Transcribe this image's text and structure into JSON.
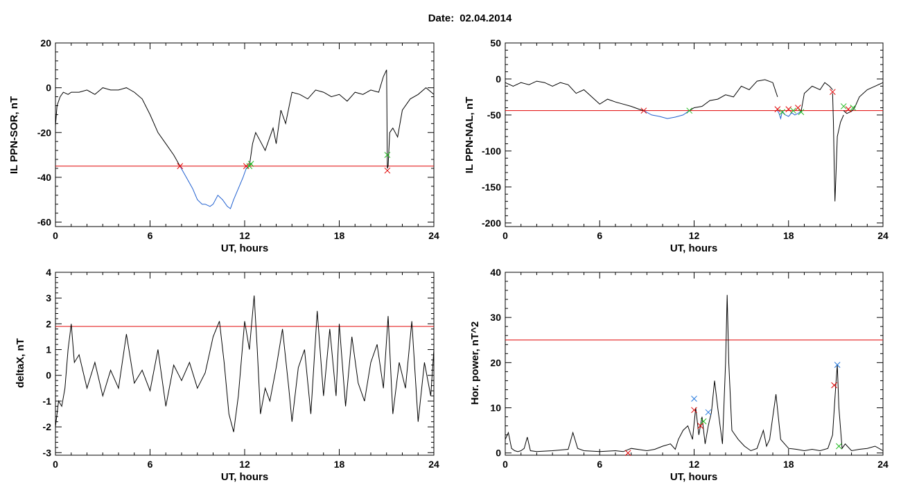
{
  "header": {
    "date_label": "Date:",
    "date_value": "02.04.2014"
  },
  "chart_data": [
    {
      "id": "p1",
      "type": "line",
      "ylabel": "IL PPN-SOR, nT",
      "xlabel": "UT, hours",
      "xlim": [
        0,
        24
      ],
      "ylim": [
        -62,
        20
      ],
      "xticks": [
        0,
        6,
        12,
        18,
        24
      ],
      "yticks": [
        -60,
        -40,
        -20,
        0,
        20
      ],
      "threshold": -35,
      "colors": {
        "line": "#000000",
        "highlight": "#1f5fd0",
        "threshold": "#e00000",
        "marker_red": "#e00000",
        "marker_green": "#22bb22"
      },
      "series": [
        {
          "x": [
            0,
            0.1,
            0.3,
            0.5,
            0.8,
            1,
            1.5,
            2,
            2.5,
            3,
            3.5,
            4,
            4.5,
            5,
            5.5,
            6,
            6.5,
            7,
            7.5,
            7.9
          ],
          "y": [
            -17,
            -8,
            -4,
            -2,
            -3,
            -2,
            -2,
            -1,
            -3,
            0,
            -1,
            -1,
            0,
            -2,
            -5,
            -12,
            -20,
            -25,
            -30,
            -35
          ]
        },
        {
          "x": [
            7.9,
            8.3,
            8.7,
            9,
            9.3,
            9.5,
            9.8,
            10,
            10.3,
            10.6,
            10.9,
            11.1,
            11.3,
            11.6,
            11.9,
            12.1,
            12.3
          ],
          "y": [
            -35,
            -40,
            -45,
            -50,
            -52,
            -52,
            -53,
            -52,
            -48,
            -50,
            -53,
            -54,
            -50,
            -45,
            -40,
            -36,
            -35
          ]
        },
        {
          "x": [
            12.3,
            12.5,
            12.7,
            13,
            13.3,
            13.5,
            13.8,
            14,
            14.3,
            14.6,
            15,
            15.5,
            16,
            16.5,
            17,
            17.5,
            18,
            18.5,
            19,
            19.5,
            20,
            20.5,
            20.8,
            21,
            21.05,
            21.1,
            21.2,
            21.4,
            21.7,
            22,
            22.5,
            23,
            23.5,
            24
          ],
          "y": [
            -35,
            -25,
            -20,
            -24,
            -28,
            -24,
            -18,
            -25,
            -10,
            -16,
            -2,
            -3,
            -5,
            -1,
            -2,
            -4,
            -3,
            -6,
            -2,
            -3,
            -1,
            -2,
            5,
            8,
            -36,
            -35,
            -20,
            -18,
            -22,
            -10,
            -5,
            -3,
            0,
            -3
          ]
        }
      ],
      "markers": [
        {
          "x": 7.9,
          "y": -35,
          "color": "red"
        },
        {
          "x": 12.1,
          "y": -35,
          "color": "red"
        },
        {
          "x": 12.3,
          "y": -35,
          "color": "green"
        },
        {
          "x": 12.4,
          "y": -34,
          "color": "green"
        },
        {
          "x": 21.05,
          "y": -37,
          "color": "red"
        },
        {
          "x": 21.05,
          "y": -30,
          "color": "green"
        }
      ]
    },
    {
      "id": "p2",
      "type": "line",
      "ylabel": "IL PPN-NAL, nT",
      "xlabel": "UT, hours",
      "xlim": [
        0,
        24
      ],
      "ylim": [
        -205,
        50
      ],
      "xticks": [
        0,
        6,
        12,
        18,
        24
      ],
      "yticks": [
        -200,
        -150,
        -100,
        -50,
        0,
        50
      ],
      "threshold": -44,
      "colors": {
        "line": "#000000",
        "highlight": "#1f5fd0",
        "threshold": "#e00000",
        "marker_red": "#e00000",
        "marker_green": "#22bb22"
      },
      "series": [
        {
          "x": [
            0,
            0.5,
            1,
            1.5,
            2,
            2.5,
            3,
            3.5,
            4,
            4.5,
            5,
            5.5,
            6,
            6.5,
            7,
            7.5,
            8,
            8.5,
            8.8
          ],
          "y": [
            -5,
            -10,
            -5,
            -8,
            -3,
            -5,
            -10,
            -5,
            -8,
            -20,
            -15,
            -25,
            -35,
            -28,
            -32,
            -35,
            -38,
            -42,
            -44
          ]
        },
        {
          "x": [
            8.8,
            9.3,
            9.8,
            10.3,
            10.8,
            11.3,
            11.7
          ],
          "y": [
            -44,
            -50,
            -52,
            -55,
            -53,
            -50,
            -44
          ]
        },
        {
          "x": [
            11.7,
            12,
            12.5,
            13,
            13.5,
            14,
            14.5,
            15,
            15.5,
            16,
            16.5,
            17,
            17.3
          ],
          "y": [
            -44,
            -40,
            -38,
            -30,
            -28,
            -22,
            -25,
            -10,
            -15,
            -3,
            -1,
            -5,
            -25
          ]
        },
        {
          "x": [
            17.3,
            17.4,
            17.5,
            17.6,
            17.8,
            18,
            18.2,
            18.4,
            18.6,
            18.8
          ],
          "y": [
            -44,
            -48,
            -55,
            -45,
            -50,
            -52,
            -47,
            -50,
            -48,
            -45
          ]
        },
        {
          "x": [
            18.8,
            19,
            19.5,
            20,
            20.3,
            20.6,
            20.8
          ],
          "y": [
            -45,
            -20,
            -10,
            -15,
            -5,
            -10,
            -15
          ]
        },
        {
          "x": [
            20.8,
            20.85,
            20.9,
            20.95,
            21,
            21.05,
            21.1,
            21.2,
            21.3,
            21.4,
            21.5
          ],
          "y": [
            -20,
            -60,
            -120,
            -170,
            -140,
            -110,
            -80,
            -70,
            -60,
            -55,
            -50
          ]
        },
        {
          "x": [
            21.5,
            21.7,
            22,
            22.2,
            22.5,
            23,
            23.5,
            24
          ],
          "y": [
            -44,
            -48,
            -45,
            -40,
            -25,
            -15,
            -10,
            -5
          ]
        }
      ],
      "markers": [
        {
          "x": 8.8,
          "y": -44,
          "color": "red"
        },
        {
          "x": 11.7,
          "y": -44,
          "color": "green"
        },
        {
          "x": 17.3,
          "y": -42,
          "color": "red"
        },
        {
          "x": 17.6,
          "y": -46,
          "color": "green"
        },
        {
          "x": 18,
          "y": -42,
          "color": "red"
        },
        {
          "x": 18.3,
          "y": -44,
          "color": "green"
        },
        {
          "x": 18.6,
          "y": -40,
          "color": "red"
        },
        {
          "x": 18.8,
          "y": -46,
          "color": "green"
        },
        {
          "x": 20.8,
          "y": -18,
          "color": "red"
        },
        {
          "x": 21.5,
          "y": -38,
          "color": "green"
        },
        {
          "x": 21.8,
          "y": -42,
          "color": "red"
        },
        {
          "x": 22.1,
          "y": -40,
          "color": "green"
        }
      ]
    },
    {
      "id": "p3",
      "type": "line",
      "ylabel": "deltaX, nT",
      "xlabel": "UT, hours",
      "xlim": [
        0,
        24
      ],
      "ylim": [
        -3.1,
        4
      ],
      "xticks": [
        0,
        6,
        12,
        18,
        24
      ],
      "yticks": [
        -3,
        -2,
        -1,
        0,
        1,
        2,
        3,
        4
      ],
      "threshold": 1.9,
      "colors": {
        "line": "#000000",
        "threshold": "#e00000"
      },
      "series": [
        {
          "x": [
            0,
            0.2,
            0.4,
            0.6,
            0.8,
            1,
            1.2,
            1.5,
            2,
            2.5,
            3,
            3.5,
            4,
            4.5,
            5,
            5.5,
            6,
            6.5,
            7,
            7.5,
            8,
            8.5,
            9,
            9.5,
            10,
            10.4,
            10.7,
            11,
            11.3,
            11.6,
            12,
            12.3,
            12.6,
            12.8,
            13,
            13.3,
            13.6,
            14,
            14.4,
            14.8,
            15,
            15.4,
            15.8,
            16.2,
            16.6,
            17,
            17.4,
            17.8,
            18,
            18.4,
            18.8,
            19.2,
            19.6,
            20,
            20.4,
            20.8,
            21.1,
            21.4,
            21.8,
            22.2,
            22.6,
            23,
            23.4,
            23.8,
            24
          ],
          "y": [
            -2,
            -1,
            -1.2,
            -0.5,
            1,
            2,
            0.5,
            0.8,
            -0.5,
            0.5,
            -0.8,
            0.2,
            -0.5,
            1.6,
            -0.3,
            0.2,
            -0.6,
            1,
            -1.2,
            0.4,
            -0.2,
            0.5,
            -0.5,
            0.1,
            1.5,
            2.1,
            0.5,
            -1.5,
            -2.2,
            -0.8,
            2.1,
            1,
            3.1,
            1,
            -1.5,
            -0.5,
            -1,
            0.3,
            1.8,
            -0.5,
            -1.8,
            0.3,
            1,
            -1.5,
            2.5,
            -0.8,
            1.8,
            -0.8,
            2,
            -1.2,
            1.5,
            -0.3,
            -1,
            0.5,
            1.2,
            -0.5,
            2.3,
            -1.5,
            0.5,
            -0.5,
            2.1,
            -1.8,
            0.5,
            -0.8,
            1
          ]
        }
      ],
      "markers": []
    },
    {
      "id": "p4",
      "type": "line",
      "ylabel": "Hor. power, nT^2",
      "xlabel": "UT, hours",
      "xlim": [
        0,
        24
      ],
      "ylim": [
        -0.5,
        40
      ],
      "xticks": [
        0,
        6,
        12,
        18,
        24
      ],
      "yticks": [
        0,
        10,
        20,
        30,
        40
      ],
      "threshold": 25,
      "colors": {
        "line": "#000000",
        "threshold": "#e00000",
        "marker_red": "#e00000",
        "marker_green": "#22bb22",
        "marker_blue": "#2277dd"
      },
      "series": [
        {
          "x": [
            0,
            0.2,
            0.4,
            0.6,
            0.8,
            1,
            1.2,
            1.4,
            1.6,
            2,
            3,
            4,
            4.3,
            4.6,
            5,
            6,
            7,
            7.5,
            8,
            9,
            9.5,
            10,
            10.5,
            10.8,
            11,
            11.3,
            11.6,
            11.9,
            12.1,
            12.3,
            12.5,
            12.7,
            12.9,
            13.1,
            13.3,
            13.5,
            13.8,
            14,
            14.1,
            14.2,
            14.4,
            14.8,
            15.2,
            15.6,
            16,
            16.4,
            16.6,
            16.8,
            17,
            17.2,
            17.5,
            18,
            18.5,
            19,
            19.5,
            20,
            20.5,
            20.8,
            21,
            21.1,
            21.2,
            21.4,
            21.6,
            22,
            22.5,
            23,
            23.5,
            24
          ],
          "y": [
            3,
            4.5,
            1,
            0.5,
            0.3,
            0.5,
            1,
            3.5,
            0.5,
            0.3,
            0.5,
            0.8,
            4.5,
            1,
            0.5,
            0.3,
            0.5,
            0.3,
            1,
            0.5,
            0.8,
            1.5,
            2,
            0.8,
            3,
            5,
            6,
            3,
            10,
            4,
            8,
            2,
            6,
            9,
            16,
            10,
            2,
            20,
            35,
            20,
            5,
            3,
            1.5,
            0.5,
            1,
            5,
            1.5,
            3,
            8,
            13,
            3,
            1,
            0.8,
            0.5,
            0.8,
            0.5,
            1,
            4,
            15,
            19.5,
            10,
            1,
            2,
            0.5,
            0.8,
            1,
            1.5,
            0.5
          ]
        }
      ],
      "markers": [
        {
          "x": 7.8,
          "y": 0,
          "color": "red"
        },
        {
          "x": 12,
          "y": 9.5,
          "color": "red"
        },
        {
          "x": 12,
          "y": 12,
          "color": "blue"
        },
        {
          "x": 12.4,
          "y": 6,
          "color": "red"
        },
        {
          "x": 12.6,
          "y": 7,
          "color": "green"
        },
        {
          "x": 12.9,
          "y": 9,
          "color": "blue"
        },
        {
          "x": 20.9,
          "y": 15,
          "color": "red"
        },
        {
          "x": 21.1,
          "y": 19.5,
          "color": "blue"
        },
        {
          "x": 21.2,
          "y": 1.5,
          "color": "green"
        }
      ]
    }
  ]
}
